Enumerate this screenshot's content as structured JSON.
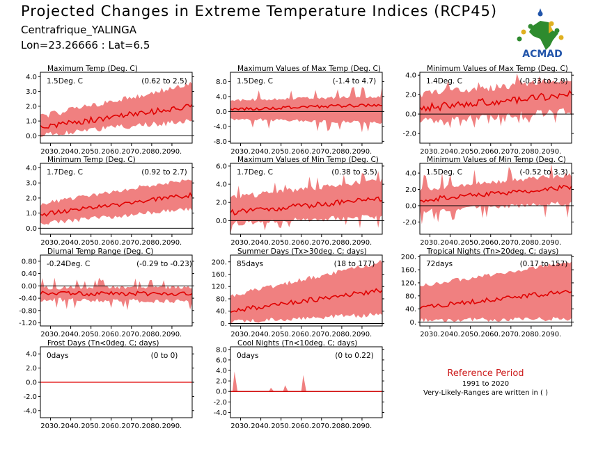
{
  "header": {
    "title": "Projected Changes in Extreme Temperature Indices (RCP45)",
    "subtitle": "Centrafrique_YALINGA",
    "coords": "Lon=23.26666 : Lat=6.5"
  },
  "logo": {
    "text": "ACMAD",
    "icon": "africa-map-logo"
  },
  "colors": {
    "band": "#f08080",
    "line": "#e00000",
    "zero": "#000000",
    "ref_title": "#cc1a1a"
  },
  "reference": {
    "title": "Reference Period",
    "years": "1991 to 2020",
    "note": "Very-Likely-Ranges are written in ( )"
  },
  "chart_data": [
    {
      "type": "area",
      "title": "Maximum Temp (Deg. C)",
      "value": "1.5Deg. C",
      "range": "(0.62 to 2.5)",
      "x_ticks": [
        "2030.",
        "2040.",
        "2050.",
        "2060.",
        "2070.",
        "2080.",
        "2090."
      ],
      "y_ticks": [
        "0.0",
        "1.0",
        "2.0",
        "3.0",
        "4.0"
      ],
      "y_tick_values": [
        0,
        1,
        2,
        3,
        4
      ],
      "ylim": [
        -0.5,
        4.3
      ],
      "series": {
        "start": 0.6,
        "end": 2.0,
        "lower_start": 0.1,
        "lower_end": 1.0,
        "upper_start": 1.3,
        "upper_end": 3.5,
        "noise": 0.2,
        "spike": 0
      }
    },
    {
      "type": "area",
      "title": "Maximum Values of Max Temp (Deg. C)",
      "value": "1.5Deg. C",
      "range": "(-1.4 to 4.7)",
      "x_ticks": [
        "2030.",
        "2040.",
        "2050.",
        "2060.",
        "2070.",
        "2080.",
        "2090."
      ],
      "y_ticks": [
        "-8.0",
        "-4.0",
        "0.0",
        "4.0",
        "8.0"
      ],
      "y_tick_values": [
        -8,
        -4,
        0,
        4,
        8
      ],
      "ylim": [
        -8.5,
        10.5
      ],
      "series": {
        "start": 0.6,
        "end": 1.8,
        "lower_start": -2.0,
        "lower_end": -3.0,
        "upper_start": 3.0,
        "upper_end": 4.0,
        "noise": 0.4,
        "spike": 2.5
      }
    },
    {
      "type": "area",
      "title": "Minimum Values of Max Temp (Deg. C)",
      "value": "1.4Deg. C",
      "range": "(-0.33 to 2.9)",
      "x_ticks": [
        "2030.",
        "2040.",
        "2050.",
        "2060.",
        "2070.",
        "2080.",
        "2090."
      ],
      "y_ticks": [
        "-2.0",
        "0.0",
        "2.0",
        "4.0"
      ],
      "y_tick_values": [
        -2,
        0,
        2,
        4
      ],
      "ylim": [
        -3,
        4.3
      ],
      "series": {
        "start": 0.6,
        "end": 2.0,
        "lower_start": -0.8,
        "lower_end": 0.3,
        "upper_start": 2.0,
        "upper_end": 3.6,
        "noise": 0.4,
        "spike": 0.8
      }
    },
    {
      "type": "area",
      "title": "Minimum Temp (Deg. C)",
      "value": "1.7Deg. C",
      "range": "(0.92 to 2.7)",
      "x_ticks": [
        "2030.",
        "2040.",
        "2050.",
        "2060.",
        "2070.",
        "2080.",
        "2090."
      ],
      "y_ticks": [
        "0.0",
        "1.0",
        "2.0",
        "3.0",
        "4.0"
      ],
      "y_tick_values": [
        0,
        1,
        2,
        3,
        4
      ],
      "ylim": [
        -0.4,
        4.3
      ],
      "series": {
        "start": 0.9,
        "end": 2.2,
        "lower_start": 0.3,
        "lower_end": 1.3,
        "upper_start": 1.6,
        "upper_end": 3.3,
        "noise": 0.15,
        "spike": 0
      }
    },
    {
      "type": "area",
      "title": "Maximum Values of Min Temp (Deg. C)",
      "value": "1.7Deg. C",
      "range": "(0.38 to 3.5)",
      "x_ticks": [
        "2030.",
        "2040.",
        "2050.",
        "2060.",
        "2070.",
        "2080.",
        "2090."
      ],
      "y_ticks": [
        "0.0",
        "2.0",
        "4.0",
        "6.0"
      ],
      "y_tick_values": [
        0,
        2,
        4,
        6
      ],
      "ylim": [
        -1.5,
        6.3
      ],
      "series": {
        "start": 0.9,
        "end": 2.4,
        "lower_start": -0.3,
        "lower_end": 0.5,
        "upper_start": 2.5,
        "upper_end": 4.5,
        "noise": 0.3,
        "spike": 1.0
      }
    },
    {
      "type": "area",
      "title": "Minimum Values of Min Temp (Deg. C)",
      "value": "1.5Deg. C",
      "range": "(-0.52 to 3.3)",
      "x_ticks": [
        "2030.",
        "2040.",
        "2050.",
        "2060.",
        "2070.",
        "2080.",
        "2090."
      ],
      "y_ticks": [
        "-2.0",
        "0.0",
        "2.0",
        "4.0"
      ],
      "y_tick_values": [
        -2,
        0,
        2,
        4
      ],
      "ylim": [
        -3.5,
        5.2
      ],
      "series": {
        "start": 0.7,
        "end": 2.3,
        "lower_start": -0.6,
        "lower_end": 0.3,
        "upper_start": 2.0,
        "upper_end": 3.8,
        "noise": 0.3,
        "spike": 1.5
      }
    },
    {
      "type": "area",
      "title": "Diurnal Temp Range (Deg. C)",
      "value": "-0.24Deg. C",
      "range": "(-0.29 to -0.23)",
      "x_ticks": [
        "2030.",
        "2040.",
        "2050.",
        "2060.",
        "2070.",
        "2080.",
        "2090."
      ],
      "y_ticks": [
        "-1.20",
        "-0.80",
        "-0.40",
        "0.00",
        "0.40",
        "0.80"
      ],
      "y_tick_values": [
        -1.2,
        -0.8,
        -0.4,
        0,
        0.4,
        0.8
      ],
      "ylim": [
        -1.3,
        1.0
      ],
      "series": {
        "start": -0.25,
        "end": -0.25,
        "lower_start": -0.45,
        "lower_end": -0.5,
        "upper_start": -0.05,
        "upper_end": -0.05,
        "noise": 0.07,
        "spike": 0.25
      }
    },
    {
      "type": "area",
      "title": "Summer Days (Tx>30deg. C; days)",
      "value": "85days",
      "range": "(18 to 177)",
      "x_ticks": [
        "2030.",
        "2040.",
        "2050.",
        "2060.",
        "2070.",
        "2080.",
        "2090."
      ],
      "y_ticks": [
        "0.",
        "40.",
        "80.",
        "120.",
        "160.",
        "200."
      ],
      "y_tick_values": [
        0,
        40,
        80,
        120,
        160,
        200
      ],
      "ylim": [
        -8,
        222
      ],
      "series": {
        "start": 40,
        "end": 108,
        "lower_start": 5,
        "lower_end": 30,
        "upper_start": 90,
        "upper_end": 200,
        "noise": 8,
        "spike": 0
      }
    },
    {
      "type": "area",
      "title": "Tropical Nights (Tn>20deg. C; days)",
      "value": "72days",
      "range": "(0.17 to 157)",
      "x_ticks": [
        "2030.",
        "2040.",
        "2050.",
        "2060.",
        "2070.",
        "2080.",
        "2090."
      ],
      "y_ticks": [
        "0.",
        "40.",
        "80.",
        "120.",
        "160.",
        "200."
      ],
      "y_tick_values": [
        0,
        40,
        80,
        120,
        160,
        200
      ],
      "ylim": [
        -12,
        205
      ],
      "series": {
        "start": 45,
        "end": 95,
        "lower_start": 5,
        "lower_end": 10,
        "upper_start": 110,
        "upper_end": 185,
        "noise": 7,
        "spike": 0
      }
    },
    {
      "type": "area",
      "title": "Frost Days (Tn<0deg. C; days)",
      "value": "0days",
      "range": "(0 to 0)",
      "x_ticks": [
        "2030.",
        "2040.",
        "2050.",
        "2060.",
        "2070.",
        "2080.",
        "2090."
      ],
      "y_ticks": [
        "-4.0",
        "-2.0",
        "0.0",
        "2.0",
        "4.0"
      ],
      "y_tick_values": [
        -4,
        -2,
        0,
        2,
        4
      ],
      "ylim": [
        -5,
        5
      ],
      "series": {
        "start": 0,
        "end": 0,
        "lower_start": 0,
        "lower_end": 0,
        "upper_start": 0,
        "upper_end": 0,
        "noise": 0,
        "spike": 0
      }
    },
    {
      "type": "area",
      "title": "Cool Nights (Tn<10deg. C; days)",
      "value": "0days",
      "range": "(0 to 0.22)",
      "x_ticks": [
        "2030.",
        "2040.",
        "2050.",
        "2060.",
        "2070.",
        "2080.",
        "2090."
      ],
      "y_ticks": [
        "-4.0",
        "-2.0",
        "0.0",
        "2.0",
        "4.0",
        "6.0",
        "8.0"
      ],
      "y_tick_values": [
        -4,
        -2,
        0,
        2,
        4,
        6,
        8
      ],
      "ylim": [
        -5,
        8.5
      ],
      "series": {
        "start": 0,
        "end": 0,
        "lower_start": 0,
        "lower_end": 0,
        "upper_start": 0,
        "upper_end": 0,
        "noise": 0,
        "spike": 0,
        "bumps": [
          {
            "year": 2027,
            "value": 3.8
          },
          {
            "year": 2045,
            "value": 0.7
          },
          {
            "year": 2052,
            "value": 1.2
          },
          {
            "year": 2061,
            "value": 3.1
          }
        ]
      }
    }
  ]
}
